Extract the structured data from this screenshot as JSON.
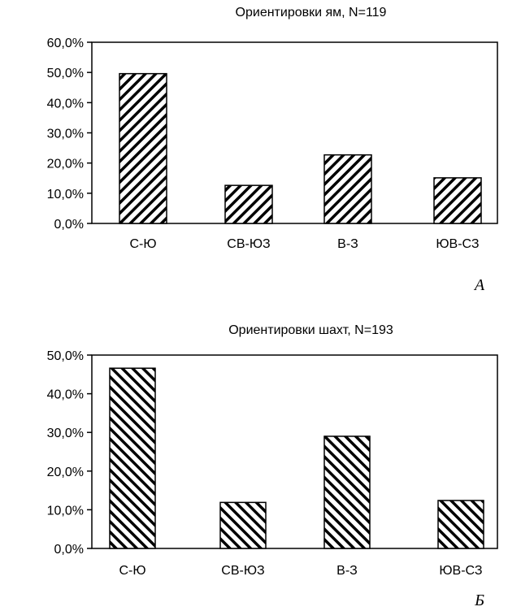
{
  "chart_data": [
    {
      "type": "bar",
      "title": "Ориентировки ям, N=119",
      "panel_label": "А",
      "categories": [
        "С-Ю",
        "СВ-ЮЗ",
        "В-З",
        "ЮВ-СЗ"
      ],
      "values": [
        49.6,
        12.6,
        22.7,
        15.1
      ],
      "yticks": [
        "0,0%",
        "10,0%",
        "20,0%",
        "30,0%",
        "40,0%",
        "50,0%",
        "60,0%"
      ],
      "ylim": [
        0,
        60
      ],
      "xlabel": "",
      "ylabel": "",
      "hatch": "forward",
      "grid": false
    },
    {
      "type": "bar",
      "title": "Ориентировки шахт, N=193",
      "panel_label": "Б",
      "categories": [
        "С-Ю",
        "СВ-ЮЗ",
        "В-З",
        "ЮВ-СЗ"
      ],
      "values": [
        46.6,
        11.9,
        29.0,
        12.4
      ],
      "yticks": [
        "0,0%",
        "10,0%",
        "20,0%",
        "30,0%",
        "40,0%",
        "50,0%"
      ],
      "ylim": [
        0,
        50
      ],
      "xlabel": "",
      "ylabel": "",
      "hatch": "backward",
      "grid": false
    }
  ]
}
